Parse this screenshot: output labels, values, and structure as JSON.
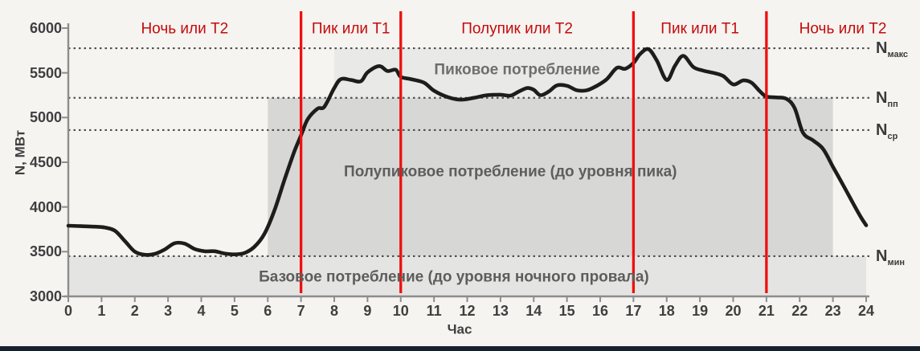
{
  "chart_data": {
    "type": "line",
    "xlabel": "Час",
    "ylabel": "N, МВт",
    "xlim": [
      0,
      24
    ],
    "ylim": [
      3000,
      6000
    ],
    "x_ticks": [
      0,
      1,
      2,
      3,
      4,
      5,
      6,
      7,
      8,
      9,
      10,
      11,
      12,
      13,
      14,
      15,
      16,
      17,
      18,
      19,
      20,
      21,
      22,
      23,
      24
    ],
    "y_ticks": [
      3000,
      3500,
      4000,
      4500,
      5000,
      5500,
      6000
    ],
    "grid": "off",
    "series": [
      {
        "name": "load-curve",
        "x": [
          0,
          0.4,
          0.8,
          1.1,
          1.4,
          1.7,
          2.0,
          2.3,
          2.6,
          2.9,
          3.2,
          3.5,
          3.8,
          4.1,
          4.4,
          4.7,
          5.0,
          5.3,
          5.6,
          5.9,
          6.2,
          6.5,
          6.8,
          7.0,
          7.2,
          7.5,
          7.7,
          8.0,
          8.2,
          8.5,
          8.8,
          9.0,
          9.35,
          9.6,
          9.85,
          10.0,
          10.3,
          10.7,
          11.0,
          11.4,
          11.8,
          12.2,
          12.6,
          13.0,
          13.3,
          13.55,
          13.8,
          14.0,
          14.2,
          14.45,
          14.7,
          15.0,
          15.3,
          15.6,
          15.9,
          16.2,
          16.5,
          16.75,
          17.0,
          17.2,
          17.45,
          17.7,
          18.0,
          18.25,
          18.5,
          18.8,
          19.1,
          19.4,
          19.7,
          20.0,
          20.3,
          20.55,
          20.8,
          21.0,
          21.3,
          21.6,
          21.85,
          22.1,
          22.4,
          22.7,
          23.0,
          23.3,
          23.6,
          23.85,
          24.0
        ],
        "y": [
          3790,
          3785,
          3780,
          3770,
          3735,
          3620,
          3500,
          3465,
          3475,
          3525,
          3595,
          3590,
          3530,
          3505,
          3505,
          3480,
          3470,
          3485,
          3555,
          3700,
          3960,
          4300,
          4620,
          4800,
          4980,
          5100,
          5120,
          5330,
          5430,
          5420,
          5405,
          5505,
          5575,
          5520,
          5535,
          5455,
          5430,
          5390,
          5300,
          5230,
          5200,
          5220,
          5250,
          5255,
          5245,
          5290,
          5330,
          5310,
          5250,
          5290,
          5360,
          5355,
          5305,
          5305,
          5355,
          5430,
          5555,
          5545,
          5610,
          5710,
          5765,
          5640,
          5420,
          5580,
          5690,
          5565,
          5525,
          5500,
          5465,
          5370,
          5415,
          5390,
          5295,
          5235,
          5225,
          5210,
          5105,
          4830,
          4745,
          4650,
          4450,
          4250,
          4045,
          3880,
          3795
        ]
      }
    ],
    "thresholds": [
      {
        "name": "n-max",
        "symbol": "N",
        "subscript": "макс",
        "value": 5775
      },
      {
        "name": "n-halfpeak",
        "symbol": "N",
        "subscript": "пп",
        "value": 5220
      },
      {
        "name": "n-avg",
        "symbol": "N",
        "subscript": "ср",
        "value": 4860
      },
      {
        "name": "n-min",
        "symbol": "N",
        "subscript": "мин",
        "value": 3450
      }
    ],
    "tariff_boundaries_hours": [
      7,
      10,
      17,
      21
    ],
    "tariff_zones": [
      {
        "label": "Ночь или Т2",
        "center_hour": 3.5
      },
      {
        "label": "Пик или Т1",
        "center_hour": 8.5
      },
      {
        "label": "Полупик или Т2",
        "center_hour": 13.5
      },
      {
        "label": "Пик или Т1",
        "center_hour": 19.0
      },
      {
        "label": "Ночь или Т2",
        "center_hour": 23.3
      }
    ],
    "regions": [
      {
        "name": "base",
        "label": "Базовое потребление (до уровня ночного провала)",
        "x_from": 0,
        "x_to": 24,
        "y_from": 3000,
        "y_to": 3450,
        "color": "#e4e4e2",
        "label_x": 11.6,
        "label_y": 3210
      },
      {
        "name": "half-peak",
        "label": "Полупиковое потребление (до уровня пика)",
        "x_from": 6,
        "x_to": 23,
        "y_from": 3450,
        "y_to": 5220,
        "color": "#d7d7d5",
        "label_x": 13.3,
        "label_y": 4380
      },
      {
        "name": "peak",
        "label": "Пиковое потребление",
        "x_from": 8,
        "x_to": 21,
        "y_from": 5220,
        "y_to": 5775,
        "color": "#e9e9e7",
        "label_x": 13.5,
        "label_y": 5525
      }
    ],
    "colors": {
      "background": "#f5f4f1",
      "curve": "#1d1d1b",
      "boundary_line": "#ee0f0f",
      "zone_label": "#c40b0b",
      "dotted_line": "#4f4f4f",
      "axis": "#8d8d8d",
      "tick_text": "#3f3f3f",
      "annotation_text": "#5d5d5d",
      "bottom_strip": "#16212e"
    }
  }
}
